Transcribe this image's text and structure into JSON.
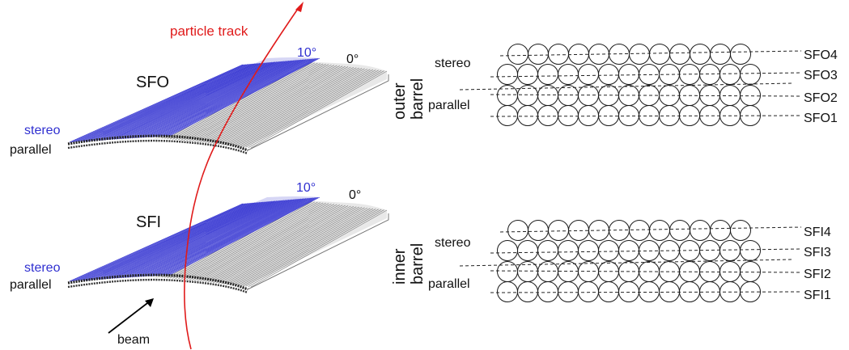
{
  "left": {
    "track_label": "particle track",
    "top_module": {
      "name": "SFO",
      "stereo_angle": "10°",
      "parallel_angle": "0°",
      "stereo_label": "stereo",
      "parallel_label": "parallel"
    },
    "bottom_module": {
      "name": "SFI",
      "stereo_angle": "10°",
      "parallel_angle": "0°",
      "stereo_label": "stereo",
      "parallel_label": "parallel"
    },
    "beam_label": "beam"
  },
  "right": {
    "outer": {
      "barrel_line1": "outer",
      "barrel_line2": "barrel",
      "stereo_label": "stereo",
      "parallel_label": "parallel",
      "layers": [
        "SFO4",
        "SFO3",
        "SFO2",
        "SFO1"
      ]
    },
    "inner": {
      "barrel_line1": "inner",
      "barrel_line2": "barrel",
      "stereo_label": "stereo",
      "parallel_label": "parallel",
      "layers": [
        "SFI4",
        "SFI3",
        "SFI2",
        "SFI1"
      ]
    }
  },
  "colors": {
    "stereo": "#2f2fd0",
    "track": "#e01b1b",
    "parallel_fibers": "#808080"
  }
}
